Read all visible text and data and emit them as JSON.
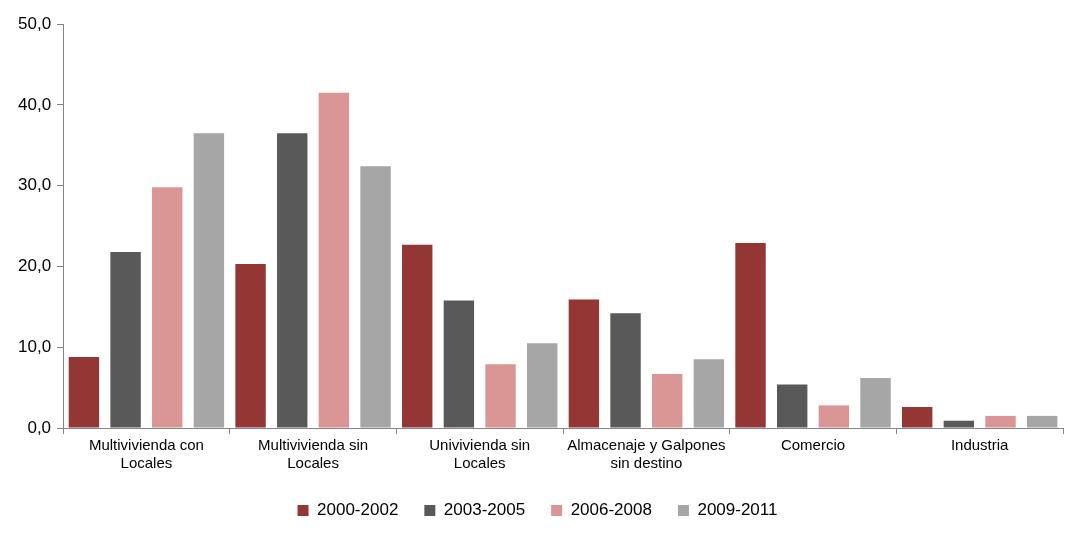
{
  "chart_data": {
    "type": "bar",
    "categories": [
      "Multivivienda con Locales",
      "Multivivienda sin Locales",
      "Univivienda sin Locales",
      "Almacenaje y Galpones sin destino",
      "Comercio",
      "Industria"
    ],
    "series": [
      {
        "name": "2000-2002",
        "color": "#943634",
        "values": [
          8.8,
          20.3,
          22.7,
          15.9,
          22.9,
          2.6
        ]
      },
      {
        "name": "2003-2005",
        "color": "#595959",
        "values": [
          21.8,
          36.5,
          15.8,
          14.2,
          5.4,
          0.9
        ]
      },
      {
        "name": "2006-2008",
        "color": "#d99694",
        "values": [
          29.8,
          41.5,
          7.9,
          6.7,
          2.8,
          1.5
        ]
      },
      {
        "name": "2009-2011",
        "color": "#a6a6a6",
        "values": [
          36.5,
          32.4,
          10.5,
          8.5,
          6.2,
          1.5
        ]
      }
    ],
    "ylim": [
      0,
      50
    ],
    "yticks": [
      {
        "value": 0,
        "label": "0,0"
      },
      {
        "value": 10,
        "label": "10,0"
      },
      {
        "value": 20,
        "label": "20,0"
      },
      {
        "value": 30,
        "label": "30,0"
      },
      {
        "value": 40,
        "label": "40,0"
      },
      {
        "value": 50,
        "label": "50,0"
      }
    ],
    "grid": false,
    "legend": "bottom"
  }
}
